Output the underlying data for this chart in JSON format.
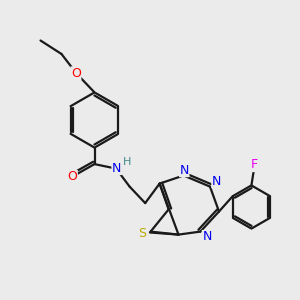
{
  "background_color": "#ebebeb",
  "bond_color": "#1a1a1a",
  "bond_lw": 1.6,
  "atom_colors": {
    "O": "#ff0000",
    "N": "#0000ee",
    "S": "#bbaa00",
    "F": "#ee00ee",
    "H": "#448888",
    "C": "#1a1a1a"
  },
  "figsize": [
    3.0,
    3.0
  ],
  "dpi": 100,
  "xlim": [
    0,
    10
  ],
  "ylim": [
    0,
    10
  ]
}
